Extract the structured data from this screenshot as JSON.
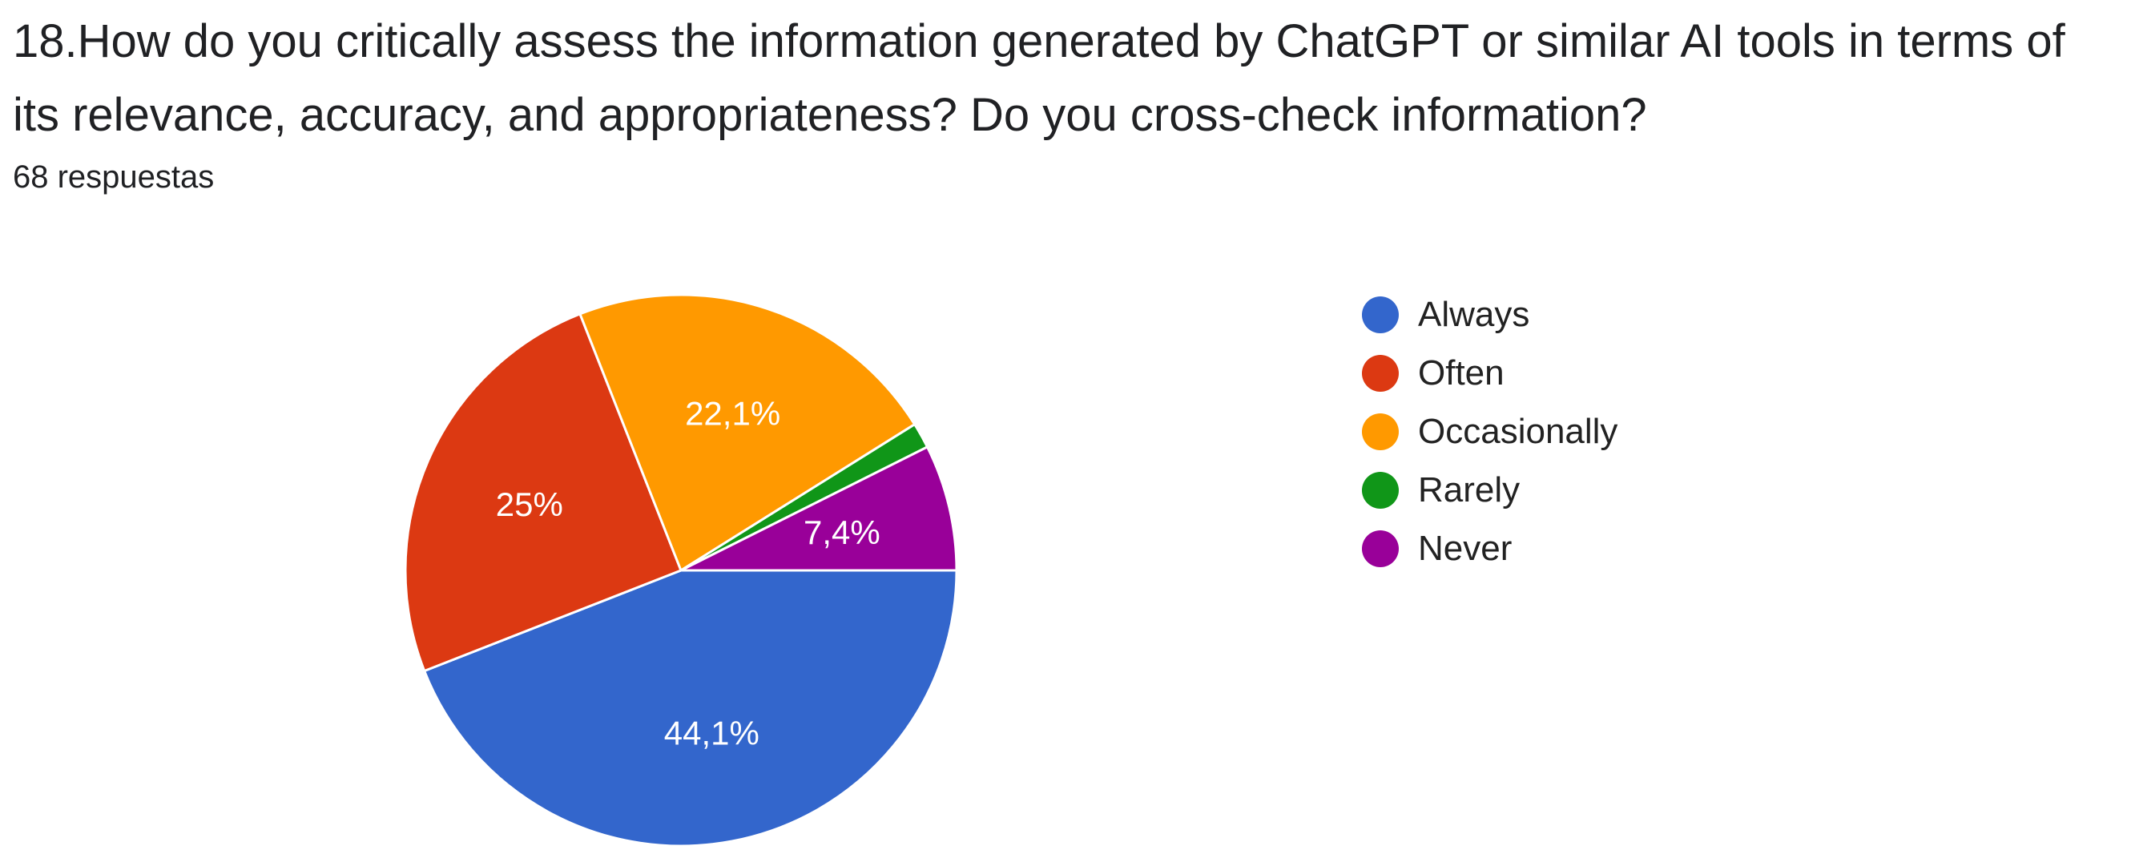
{
  "question": {
    "title": "18.How do you critically assess the information generated by ChatGPT or similar AI tools in terms of its relevance, accuracy, and appropriateness? Do you cross-check information?",
    "response_count": "68 respuestas"
  },
  "chart_data": {
    "type": "pie",
    "title": "18.How do you critically assess the information generated by ChatGPT or similar AI tools in terms of its relevance, accuracy, and appropriateness? Do you cross-check information?",
    "start_angle_deg": 0,
    "direction": "clockwise",
    "legend_position": "right",
    "slices": [
      {
        "label": "Always",
        "value": 44.1,
        "display": "44,1%",
        "color": "#3366cc"
      },
      {
        "label": "Often",
        "value": 25.0,
        "display": "25%",
        "color": "#dc3912"
      },
      {
        "label": "Occasionally",
        "value": 22.1,
        "display": "22,1%",
        "color": "#ff9900"
      },
      {
        "label": "Rarely",
        "value": 1.5,
        "display": "",
        "color": "#109618"
      },
      {
        "label": "Never",
        "value": 7.4,
        "display": "7,4%",
        "color": "#990099"
      }
    ]
  }
}
